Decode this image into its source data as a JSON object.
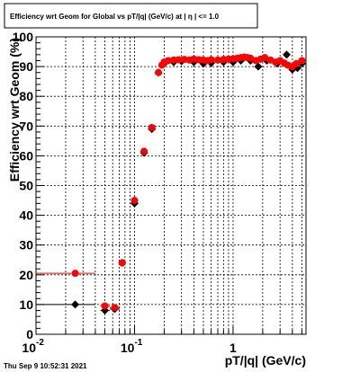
{
  "chart_data": {
    "type": "scatter",
    "title": "Efficiency wrt Geom for Global vs pT/|q| (GeV/c) at |  η  | <= 1.0",
    "xlabel": "pT/|q| (GeV/c)",
    "ylabel": "Efficiency wrt Geom (%)",
    "xscale": "log",
    "xlim": [
      0.01,
      5.5
    ],
    "ylim": [
      0,
      100
    ],
    "grid": true,
    "x_ticks": [
      {
        "value": 0.01,
        "label": "10",
        "exponent": "-2"
      },
      {
        "value": 0.1,
        "label": "10",
        "exponent": "-1"
      },
      {
        "value": 1,
        "label": "1",
        "exponent": ""
      }
    ],
    "y_ticks": [
      0,
      10,
      20,
      30,
      40,
      50,
      60,
      70,
      80,
      90,
      100
    ],
    "timestamp": "Thu Sep  9 10:52:31 2021",
    "series": [
      {
        "color": "#000000",
        "marker": "diamond",
        "points": [
          {
            "x": 0.025,
            "y": 10.0,
            "xlo": 0.01,
            "xhi": 0.04
          },
          {
            "x": 0.05,
            "y": 8.0,
            "xlo": 0.045,
            "xhi": 0.056
          },
          {
            "x": 0.063,
            "y": 8.5,
            "xlo": 0.056,
            "xhi": 0.071
          },
          {
            "x": 0.075,
            "y": 24.0
          },
          {
            "x": 0.1,
            "y": 44.0
          },
          {
            "x": 0.125,
            "y": 61.0
          },
          {
            "x": 0.15,
            "y": 69.0
          },
          {
            "x": 0.175,
            "y": 88.0
          },
          {
            "x": 0.2,
            "y": 91.0
          },
          {
            "x": 0.25,
            "y": 91.5
          },
          {
            "x": 0.3,
            "y": 91.8
          },
          {
            "x": 0.4,
            "y": 91.5
          },
          {
            "x": 0.5,
            "y": 91.0
          },
          {
            "x": 0.6,
            "y": 91.2
          },
          {
            "x": 0.8,
            "y": 91.5
          },
          {
            "x": 1.0,
            "y": 91.5
          },
          {
            "x": 1.2,
            "y": 92.0
          },
          {
            "x": 1.5,
            "y": 92.0
          },
          {
            "x": 1.8,
            "y": 90.0
          },
          {
            "x": 2.2,
            "y": 92.0
          },
          {
            "x": 2.8,
            "y": 91.0
          },
          {
            "x": 3.5,
            "y": 94.0
          },
          {
            "x": 4.0,
            "y": 89.0
          },
          {
            "x": 4.5,
            "y": 89.5
          },
          {
            "x": 5.0,
            "y": 91.0
          }
        ]
      },
      {
        "color": "#ff0000",
        "marker": "circle",
        "points": [
          {
            "x": 0.025,
            "y": 20.5,
            "xlo": 0.01,
            "xhi": 0.04
          },
          {
            "x": 0.05,
            "y": 9.5,
            "xlo": 0.045,
            "xhi": 0.056
          },
          {
            "x": 0.063,
            "y": 9.0,
            "xlo": 0.056,
            "xhi": 0.071
          },
          {
            "x": 0.075,
            "y": 24.0
          },
          {
            "x": 0.1,
            "y": 45.0
          },
          {
            "x": 0.125,
            "y": 61.5
          },
          {
            "x": 0.15,
            "y": 69.5
          },
          {
            "x": 0.175,
            "y": 88.0
          },
          {
            "x": 0.19,
            "y": 90.5
          },
          {
            "x": 0.2,
            "y": 91.5
          },
          {
            "x": 0.22,
            "y": 92.0
          },
          {
            "x": 0.25,
            "y": 92.2
          },
          {
            "x": 0.28,
            "y": 92.3
          },
          {
            "x": 0.32,
            "y": 92.4
          },
          {
            "x": 0.36,
            "y": 92.2
          },
          {
            "x": 0.4,
            "y": 92.5
          },
          {
            "x": 0.45,
            "y": 92.3
          },
          {
            "x": 0.5,
            "y": 92.2
          },
          {
            "x": 0.55,
            "y": 92.0
          },
          {
            "x": 0.6,
            "y": 92.3
          },
          {
            "x": 0.7,
            "y": 92.2
          },
          {
            "x": 0.8,
            "y": 92.4
          },
          {
            "x": 0.9,
            "y": 92.5
          },
          {
            "x": 1.0,
            "y": 92.6
          },
          {
            "x": 1.1,
            "y": 92.8
          },
          {
            "x": 1.2,
            "y": 93.0
          },
          {
            "x": 1.3,
            "y": 93.2
          },
          {
            "x": 1.4,
            "y": 93.0
          },
          {
            "x": 1.5,
            "y": 92.8
          },
          {
            "x": 1.7,
            "y": 92.0
          },
          {
            "x": 1.9,
            "y": 92.5
          },
          {
            "x": 2.1,
            "y": 93.0
          },
          {
            "x": 2.4,
            "y": 92.2
          },
          {
            "x": 2.7,
            "y": 91.5
          },
          {
            "x": 3.0,
            "y": 92.0
          },
          {
            "x": 3.3,
            "y": 91.2
          },
          {
            "x": 3.6,
            "y": 90.5
          },
          {
            "x": 4.0,
            "y": 90.0
          },
          {
            "x": 4.4,
            "y": 91.0
          },
          {
            "x": 5.0,
            "y": 92.0
          }
        ]
      }
    ]
  }
}
